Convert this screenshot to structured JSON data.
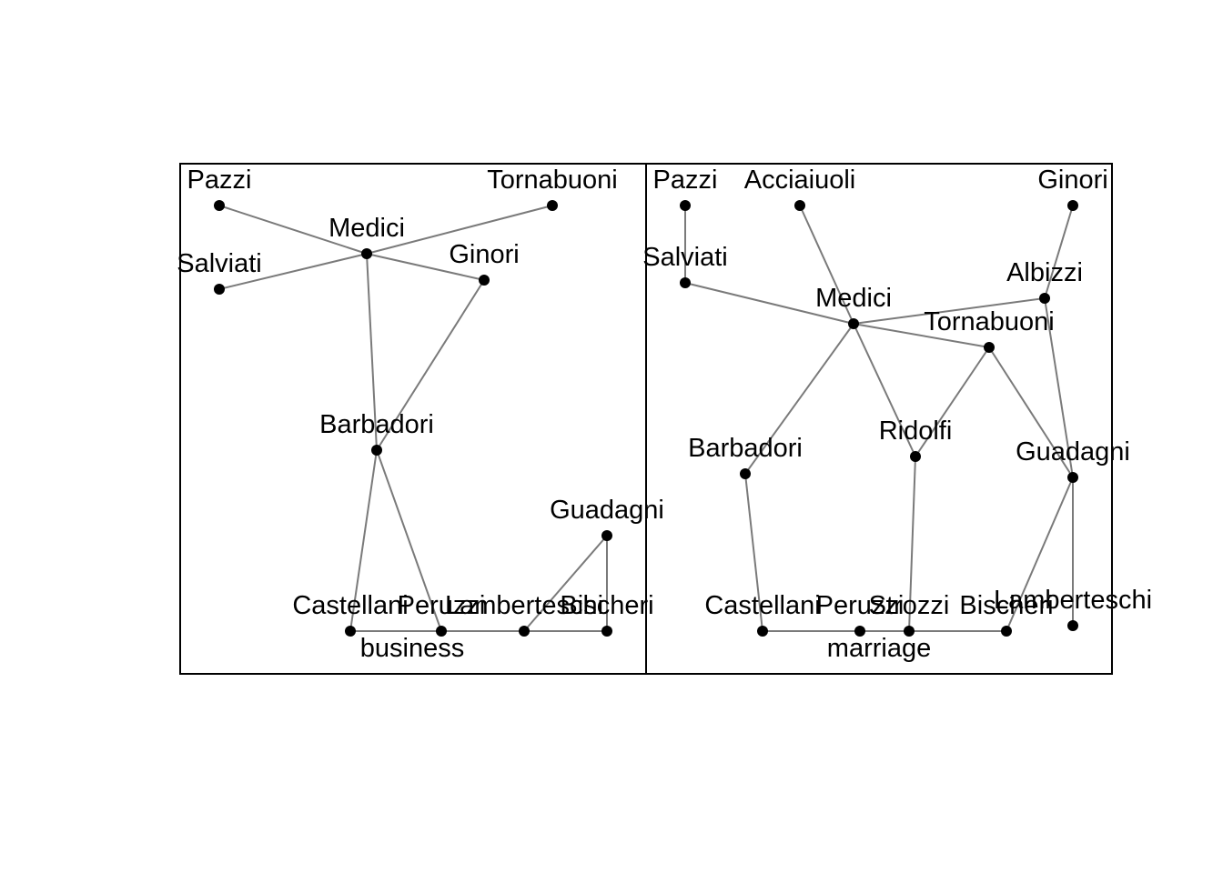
{
  "panels": [
    {
      "id": "business",
      "title": "business",
      "nodes": [
        {
          "id": "Pazzi",
          "label": "Pazzi"
        },
        {
          "id": "Tornabuoni",
          "label": "Tornabuoni"
        },
        {
          "id": "Medici",
          "label": "Medici"
        },
        {
          "id": "Salviati",
          "label": "Salviati"
        },
        {
          "id": "Ginori",
          "label": "Ginori"
        },
        {
          "id": "Barbadori",
          "label": "Barbadori"
        },
        {
          "id": "Guadagni",
          "label": "Guadagni"
        },
        {
          "id": "Castellani",
          "label": "Castellani"
        },
        {
          "id": "Peruzzi",
          "label": "Peruzzi"
        },
        {
          "id": "Lamberteschi",
          "label": "Lamberteschi"
        },
        {
          "id": "Bischeri",
          "label": "Bischeri"
        }
      ],
      "edges": [
        [
          "Pazzi",
          "Medici"
        ],
        [
          "Tornabuoni",
          "Medici"
        ],
        [
          "Salviati",
          "Medici"
        ],
        [
          "Ginori",
          "Medici"
        ],
        [
          "Medici",
          "Barbadori"
        ],
        [
          "Ginori",
          "Barbadori"
        ],
        [
          "Barbadori",
          "Castellani"
        ],
        [
          "Barbadori",
          "Peruzzi"
        ],
        [
          "Castellani",
          "Peruzzi"
        ],
        [
          "Peruzzi",
          "Lamberteschi"
        ],
        [
          "Lamberteschi",
          "Bischeri"
        ],
        [
          "Guadagni",
          "Lamberteschi"
        ],
        [
          "Guadagni",
          "Bischeri"
        ]
      ]
    },
    {
      "id": "marriage",
      "title": "marriage",
      "nodes": [
        {
          "id": "Pazzi",
          "label": "Pazzi"
        },
        {
          "id": "Acciaiuoli",
          "label": "Acciaiuoli"
        },
        {
          "id": "Ginori",
          "label": "Ginori"
        },
        {
          "id": "Salviati",
          "label": "Salviati"
        },
        {
          "id": "Albizzi",
          "label": "Albizzi"
        },
        {
          "id": "Medici",
          "label": "Medici"
        },
        {
          "id": "Tornabuoni",
          "label": "Tornabuoni"
        },
        {
          "id": "Ridolfi",
          "label": "Ridolfi"
        },
        {
          "id": "Barbadori",
          "label": "Barbadori"
        },
        {
          "id": "Guadagni",
          "label": "Guadagni"
        },
        {
          "id": "Castellani",
          "label": "Castellani"
        },
        {
          "id": "Peruzzi",
          "label": "Peruzzi"
        },
        {
          "id": "Strozzi",
          "label": "Strozzi"
        },
        {
          "id": "Bischeri",
          "label": "Bischeri"
        },
        {
          "id": "Lamberteschi",
          "label": "Lamberteschi"
        }
      ],
      "edges": [
        [
          "Pazzi",
          "Salviati"
        ],
        [
          "Salviati",
          "Medici"
        ],
        [
          "Acciaiuoli",
          "Medici"
        ],
        [
          "Ginori",
          "Albizzi"
        ],
        [
          "Albizzi",
          "Medici"
        ],
        [
          "Albizzi",
          "Guadagni"
        ],
        [
          "Medici",
          "Tornabuoni"
        ],
        [
          "Medici",
          "Ridolfi"
        ],
        [
          "Medici",
          "Barbadori"
        ],
        [
          "Tornabuoni",
          "Ridolfi"
        ],
        [
          "Tornabuoni",
          "Guadagni"
        ],
        [
          "Ridolfi",
          "Strozzi"
        ],
        [
          "Barbadori",
          "Castellani"
        ],
        [
          "Castellani",
          "Peruzzi"
        ],
        [
          "Peruzzi",
          "Strozzi"
        ],
        [
          "Strozzi",
          "Bischeri"
        ],
        [
          "Bischeri",
          "Guadagni"
        ],
        [
          "Guadagni",
          "Lamberteschi"
        ]
      ]
    }
  ]
}
